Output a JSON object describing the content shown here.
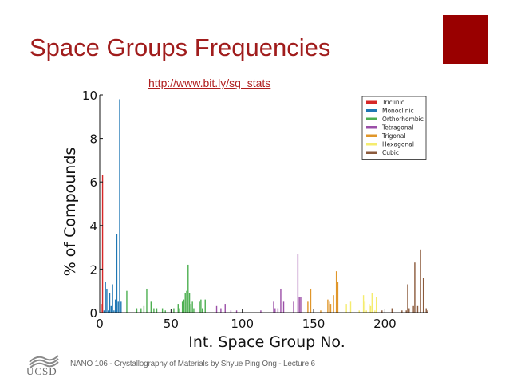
{
  "slide": {
    "title": "Space Groups Frequencies",
    "url": "http://www.bit.ly/sg_stats",
    "footer": "NANO 106 - Crystallography of Materials by Shyue Ping Ong - Lecture 6",
    "logo_text": "UCSD",
    "accent_color": "#990000"
  },
  "chart_data": {
    "type": "bar",
    "xlabel": "Int. Space Group No.",
    "ylabel": "% of Compounds",
    "xlim": [
      0,
      230
    ],
    "ylim": [
      0,
      10
    ],
    "xticks": [
      0,
      50,
      100,
      150,
      200
    ],
    "yticks": [
      0,
      2,
      4,
      6,
      8,
      10
    ],
    "grid": false,
    "legend_position": "top-right",
    "series": [
      {
        "name": "Triclinic",
        "color": "#d62728",
        "x": [
          1,
          2
        ],
        "values": [
          0.4,
          6.3
        ]
      },
      {
        "name": "Monoclinic",
        "color": "#1f77b4",
        "x": [
          3,
          4,
          5,
          6,
          7,
          8,
          9,
          10,
          11,
          12,
          13,
          14,
          15
        ],
        "values": [
          0.1,
          1.4,
          1.1,
          0.1,
          0.9,
          0.3,
          1.3,
          0.1,
          0.6,
          3.6,
          0.5,
          9.8,
          0.5
        ]
      },
      {
        "name": "Orthorhombic",
        "color": "#4caf50",
        "x": [
          19,
          26,
          29,
          31,
          33,
          36,
          38,
          40,
          44,
          46,
          52,
          55,
          56,
          58,
          59,
          60,
          61,
          62,
          63,
          64,
          65,
          66,
          70,
          71,
          72,
          74
        ],
        "values": [
          1.0,
          0.2,
          0.2,
          0.3,
          1.1,
          0.5,
          0.2,
          0.2,
          0.2,
          0.1,
          0.2,
          0.4,
          0.2,
          0.5,
          0.6,
          0.9,
          1.0,
          2.2,
          0.9,
          0.4,
          0.5,
          0.2,
          0.5,
          0.6,
          0.2,
          0.6
        ]
      },
      {
        "name": "Tetragonal",
        "color": "#9b4fa8",
        "x": [
          82,
          85,
          88,
          92,
          96,
          113,
          122,
          123,
          125,
          127,
          129,
          136,
          139,
          140,
          141
        ],
        "values": [
          0.3,
          0.2,
          0.4,
          0.1,
          0.1,
          0.1,
          0.5,
          0.2,
          0.2,
          1.1,
          0.5,
          0.5,
          2.7,
          0.7,
          0.7
        ]
      },
      {
        "name": "Trigonal",
        "color": "#e0962a",
        "x": [
          146,
          148,
          155,
          160,
          161,
          162,
          164,
          166,
          167
        ],
        "values": [
          0.5,
          1.1,
          0.1,
          0.6,
          0.5,
          0.4,
          0.8,
          1.9,
          1.4
        ]
      },
      {
        "name": "Hexagonal",
        "color": "#f5ec6e",
        "x": [
          173,
          176,
          182,
          185,
          186,
          187,
          189,
          190,
          191,
          193,
          194
        ],
        "values": [
          0.4,
          0.5,
          0.1,
          0.8,
          0.5,
          0.1,
          0.4,
          0.3,
          0.9,
          0.1,
          0.7
        ]
      },
      {
        "name": "Cubic",
        "color": "#8b5a3c",
        "x": [
          198,
          205,
          212,
          215,
          216,
          217,
          220,
          221,
          223,
          225,
          227,
          229,
          230
        ],
        "values": [
          0.1,
          0.2,
          0.1,
          0.1,
          1.3,
          0.2,
          0.3,
          2.3,
          0.3,
          2.9,
          1.6,
          0.2,
          0.1
        ]
      }
    ]
  }
}
